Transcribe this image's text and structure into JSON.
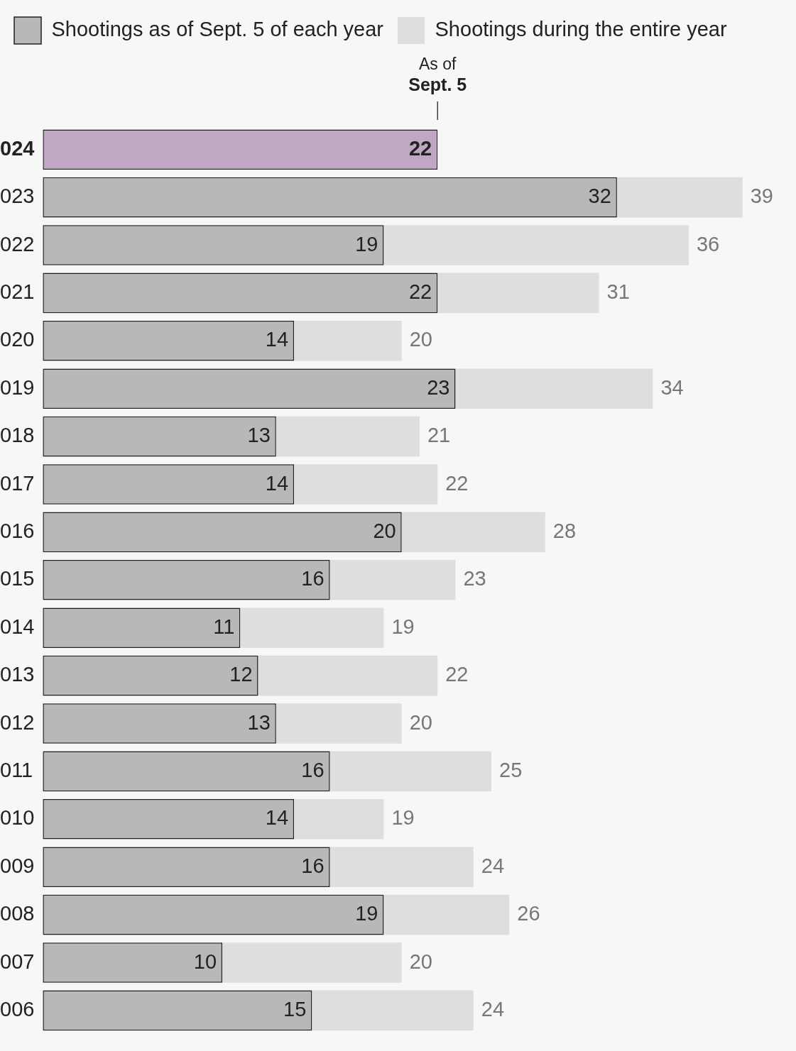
{
  "chart_data": {
    "type": "bar",
    "orientation": "horizontal",
    "categories": [
      "024",
      "023",
      "022",
      "021",
      "020",
      "019",
      "018",
      "017",
      "016",
      "015",
      "014",
      "013",
      "012",
      "011",
      "010",
      "009",
      "008",
      "007",
      "006"
    ],
    "series": [
      {
        "name": "Shootings as of Sept. 5 of each year",
        "color": "#b8b8b8",
        "colors": [
          "#c0a8c4",
          "#b8b8b8",
          "#b8b8b8",
          "#b8b8b8",
          "#b8b8b8",
          "#b8b8b8",
          "#b8b8b8",
          "#b8b8b8",
          "#b8b8b8",
          "#b8b8b8",
          "#b8b8b8",
          "#b8b8b8",
          "#b8b8b8",
          "#b8b8b8",
          "#b8b8b8",
          "#b8b8b8",
          "#b8b8b8",
          "#b8b8b8",
          "#b8b8b8"
        ],
        "values": [
          22,
          32,
          19,
          22,
          14,
          23,
          13,
          14,
          20,
          16,
          11,
          12,
          13,
          16,
          14,
          16,
          19,
          10,
          15
        ]
      },
      {
        "name": "Shootings during the entire year",
        "color": "#dedede",
        "values": [
          null,
          39,
          36,
          31,
          20,
          34,
          21,
          22,
          28,
          23,
          19,
          22,
          20,
          25,
          19,
          24,
          26,
          20,
          24
        ]
      }
    ],
    "tick_labels": "y",
    "grid": false,
    "legend": "top left",
    "data_labels": true,
    "ref_lines": [
      {
        "axis": "x",
        "value": 22,
        "label": "As of Sept. 5"
      }
    ]
  }
}
